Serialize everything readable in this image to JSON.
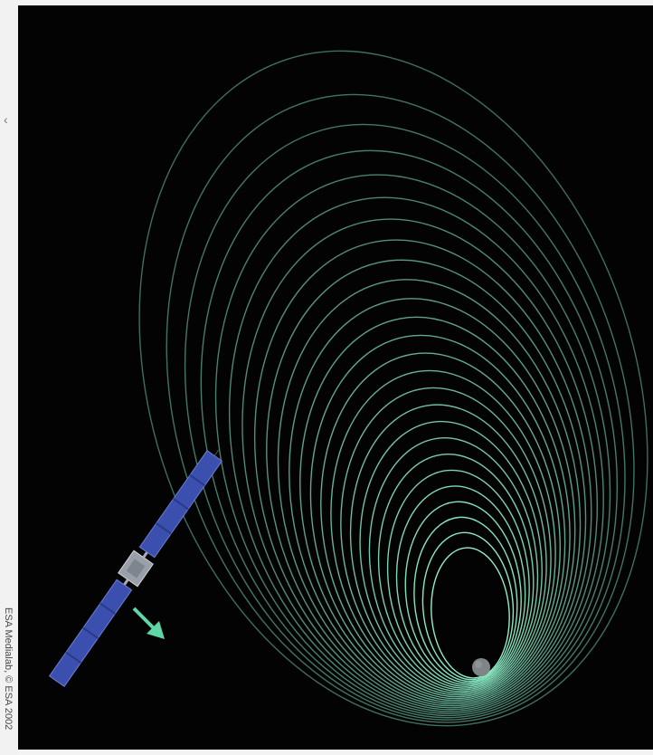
{
  "credit": "ESA Medialab, © ESA 2002",
  "colors": {
    "space": "#030303",
    "orbit_outer": "#4e8a79",
    "orbit_inner": "#8ff0c8",
    "panel": "#3a4fae",
    "body": "#9aa0aa",
    "arrow": "#5fd6a8",
    "moon": "#7f8586"
  },
  "icons": {
    "spacecraft": "satellite-icon",
    "direction": "arrow-icon",
    "moon": "moon-icon"
  }
}
